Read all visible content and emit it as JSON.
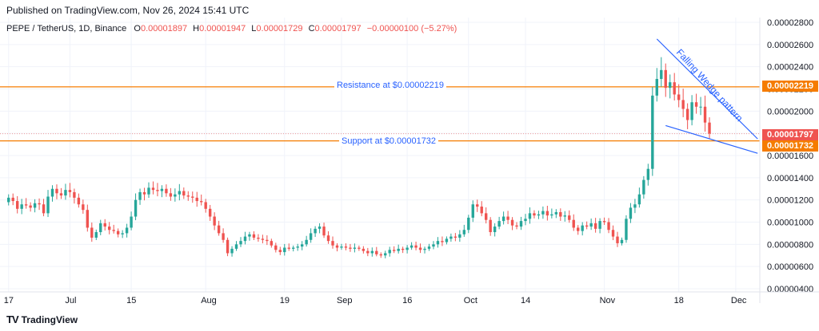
{
  "header": {
    "published": "Published on TradingView.com, Nov 26, 2024 15:41 UTC",
    "symbol": "PEPE / TetherUS, 1D, Binance",
    "o_label": "O",
    "o_value": "0.00001897",
    "h_label": "H",
    "h_value": "0.00001947",
    "l_label": "L",
    "l_value": "0.00001729",
    "c_label": "C",
    "c_value": "0.00001797",
    "change": "−0.00000100 (−5.27%)"
  },
  "footer": {
    "brand": "TradingView",
    "logo": "TV"
  },
  "annotations": {
    "resistance_label": "Resistance at $0.00002219",
    "support_label": "Support at $0.00001732",
    "wedge_label": "Falling Wedge pattern"
  },
  "price_tags": {
    "resistance": "0.00002219",
    "current": "0.00001797",
    "support": "0.00001732"
  },
  "colors": {
    "up": "#26a69a",
    "down": "#ef5350",
    "level_line": "#f57c00",
    "wedge": "#2962ff",
    "grid": "#f0f3fa",
    "text": "#131722"
  },
  "chart_data": {
    "type": "candlestick",
    "y_tick_labels": [
      "0.00002800",
      "0.00002600",
      "0.00002400",
      "0.00002200",
      "0.00002000",
      "0.00001800",
      "0.00001600",
      "0.00001400",
      "0.00001200",
      "0.00001000",
      "0.00000800",
      "0.00000600",
      "0.00000400"
    ],
    "y_ticks": [
      2.8e-05,
      2.6e-05,
      2.4e-05,
      2.2e-05,
      2e-05,
      1.8e-05,
      1.6e-05,
      1.4e-05,
      1.2e-05,
      1e-05,
      8e-06,
      6e-06,
      4e-06
    ],
    "ylim": [
      4e-06,
      2.8e-05
    ],
    "x_tick_labels": [
      {
        "label": "17",
        "day": 0
      },
      {
        "label": "Jul",
        "day": 14
      },
      {
        "label": "15",
        "day": 28
      },
      {
        "label": "Aug",
        "day": 45
      },
      {
        "label": "19",
        "day": 63
      },
      {
        "label": "Sep",
        "day": 76
      },
      {
        "label": "16",
        "day": 91
      },
      {
        "label": "Oct",
        "day": 105
      },
      {
        "label": "14",
        "day": 118
      },
      {
        "label": "Nov",
        "day": 136
      },
      {
        "label": "18",
        "day": 153
      },
      {
        "label": "Dec",
        "day": 166
      }
    ],
    "day_count": 172,
    "levels": {
      "resistance": 2.219e-05,
      "support": 1.732e-05,
      "current": 1.797e-05
    },
    "wedge": {
      "upper": [
        [
          148,
          2.65e-05
        ],
        [
          171,
          1.75e-05
        ]
      ],
      "lower": [
        [
          150,
          1.87e-05
        ],
        [
          171,
          1.62e-05
        ]
      ]
    },
    "candles_close": [
      1.22e-05,
      1.19e-05,
      1.12e-05,
      1.16e-05,
      1.15e-05,
      1.13e-05,
      1.17e-05,
      1.16e-05,
      1.08e-05,
      1.23e-05,
      1.3e-05,
      1.26e-05,
      1.24e-05,
      1.29e-05,
      1.27e-05,
      1.22e-05,
      1.16e-05,
      1.11e-05,
      9.5e-06,
      8.6e-06,
      9.1e-06,
      9.9e-06,
      9.6e-06,
      9.3e-06,
      9.2e-06,
      8.9e-06,
      9e-06,
      9.5e-06,
      1.05e-05,
      1.2e-05,
      1.27e-05,
      1.25e-05,
      1.31e-05,
      1.29e-05,
      1.28e-05,
      1.3e-05,
      1.26e-05,
      1.23e-05,
      1.25e-05,
      1.28e-05,
      1.24e-05,
      1.23e-05,
      1.22e-05,
      1.19e-05,
      1.18e-05,
      1.12e-05,
      1.05e-05,
      9.7e-06,
      9e-06,
      8.4e-06,
      7.2e-06,
      7.6e-06,
      8e-06,
      8.3e-06,
      8.7e-06,
      8.9e-06,
      8.6e-06,
      8.5e-06,
      8.4e-06,
      8.3e-06,
      7.9e-06,
      7.5e-06,
      7.3e-06,
      7.7e-06,
      7.6e-06,
      7.7e-06,
      7.8e-06,
      8e-06,
      8.4e-06,
      9e-06,
      9.4e-06,
      9.6e-06,
      8.8e-06,
      8.3e-06,
      7.9e-06,
      7.7e-06,
      7.8e-06,
      7.7e-06,
      7.6e-06,
      7.7e-06,
      7.6e-06,
      7.4e-06,
      7.2e-06,
      7.4e-06,
      7.1e-06,
      7e-06,
      7.2e-06,
      7.5e-06,
      7.4e-06,
      7.6e-06,
      7.5e-06,
      7.7e-06,
      7.9e-06,
      7.7e-06,
      7.5e-06,
      7.6e-06,
      7.8e-06,
      8e-06,
      8.3e-06,
      8.2e-06,
      8.5e-06,
      8.7e-06,
      8.6e-06,
      8.9e-06,
      9.3e-06,
      1.04e-05,
      1.16e-05,
      1.14e-05,
      1.08e-05,
      1.02e-05,
      9.1e-06,
      9.6e-06,
      1.01e-05,
      1.05e-05,
      1.02e-05,
      9.7e-06,
      9.6e-06,
      1.01e-05,
      1.03e-05,
      1.08e-05,
      1.06e-05,
      1.07e-05,
      1.1e-05,
      1.06e-05,
      1.07e-05,
      1.09e-05,
      1.05e-05,
      1.06e-05,
      1.02e-05,
      9.5e-06,
      9.2e-06,
      9.7e-06,
      9.6e-06,
      9.9e-06,
      9.4e-06,
      1.01e-05,
      1e-05,
      9.3e-06,
      8.7e-06,
      8.1e-06,
      8.4e-06,
      1.03e-05,
      1.13e-05,
      1.16e-05,
      1.25e-05,
      1.38e-05,
      1.48e-05,
      2.14e-05,
      2.29e-05,
      2.37e-05,
      2.21e-05,
      2.26e-05,
      2.15e-05,
      2.1e-05,
      2.02e-05,
      1.92e-05,
      2.08e-05,
      2.04e-05,
      2.04e-05,
      1.897e-05,
      1.797e-05
    ],
    "candles_open_first": 1.18e-05
  }
}
